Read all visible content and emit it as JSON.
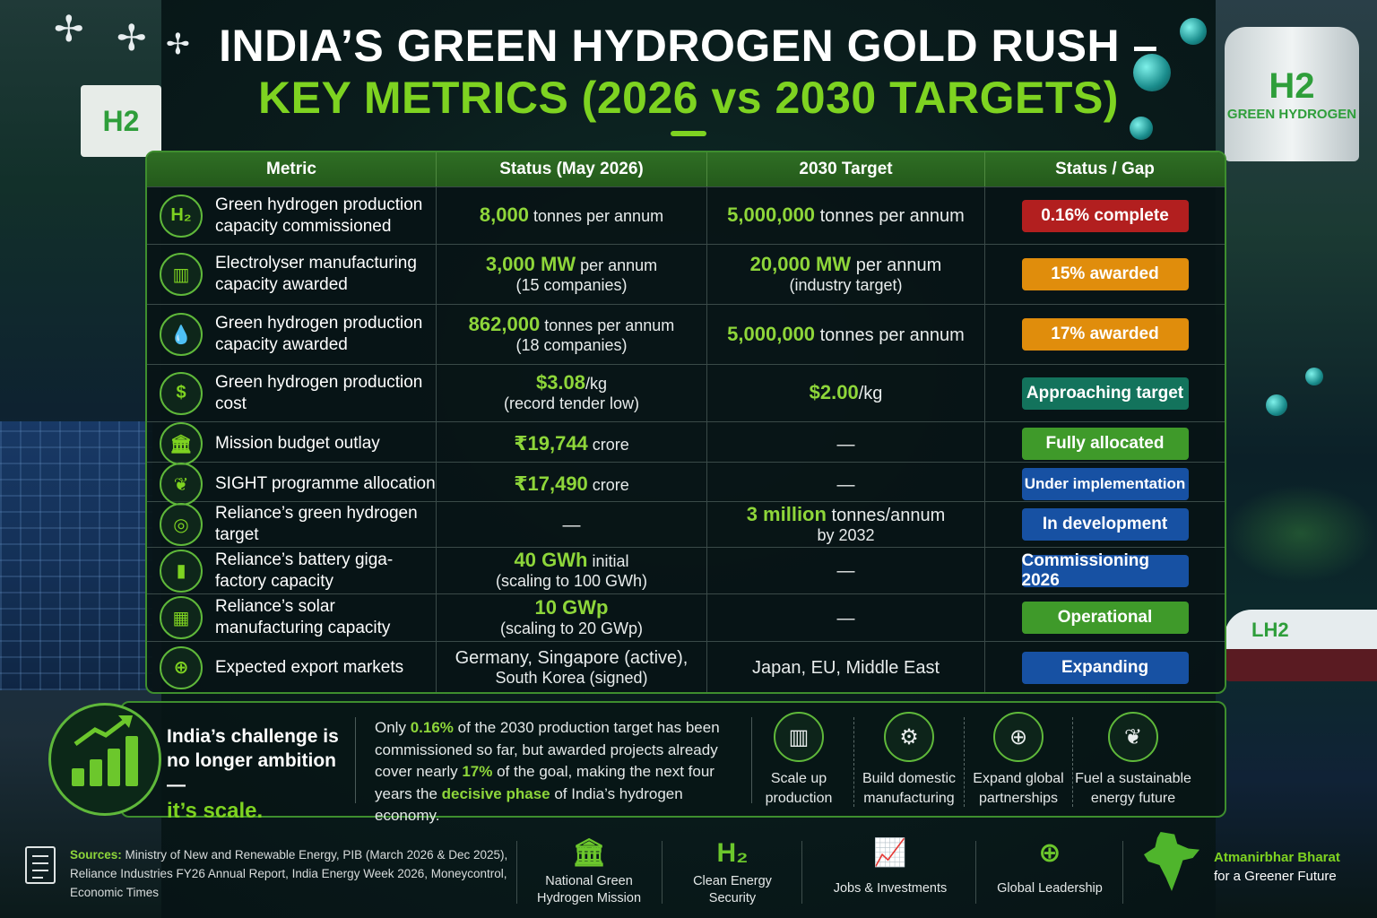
{
  "title": {
    "line1": "INDIA’S GREEN HYDROGEN GOLD RUSH –",
    "line2": "KEY METRICS (2026 vs 2030 TARGETS)"
  },
  "decor": {
    "tank_h2": "H2",
    "tank_label": "GREEN HYDROGEN",
    "facility_h2": "H2",
    "ship_label": "LH2"
  },
  "table": {
    "headers": [
      "Metric",
      "Status (May 2026)",
      "2030 Target",
      "Status / Gap"
    ],
    "rows": [
      {
        "icon": "h2-icon",
        "icon_text": "H₂",
        "metric": "Green hydrogen production capacity commissioned",
        "status_hl": "8,000",
        "status_rest": " tonnes per annum",
        "status_sub": "",
        "target_hl": "5,000,000",
        "target_rest": " tonnes per annum",
        "target_sub": "",
        "gap": "0.16% complete",
        "gap_color": "#b21f1f"
      },
      {
        "icon": "electrolyser-icon",
        "icon_text": "▥",
        "metric": "Electrolyser manufacturing capacity awarded",
        "status_hl": "3,000 MW",
        "status_rest": " per annum",
        "status_sub": "(15 companies)",
        "target_hl": "20,000 MW",
        "target_rest": " per annum",
        "target_sub": "(industry target)",
        "gap": "15% awarded",
        "gap_color": "#e08d0c"
      },
      {
        "icon": "water-drop-icon",
        "icon_text": "💧",
        "metric": "Green hydrogen production capacity awarded",
        "status_hl": "862,000",
        "status_rest": " tonnes per annum",
        "status_sub": "(18 companies)",
        "target_hl": "5,000,000",
        "target_rest": " tonnes per annum",
        "target_sub": "",
        "gap": "17% awarded",
        "gap_color": "#e08d0c"
      },
      {
        "icon": "dollar-icon",
        "icon_text": "$",
        "metric": "Green hydrogen production cost",
        "status_hl": "$3.08",
        "status_rest": "/kg",
        "status_sub": "(record tender low)",
        "target_hl": "$2.00",
        "target_rest": "/kg",
        "target_sub": "",
        "gap": "Approaching target",
        "gap_color": "#13735c"
      },
      {
        "icon": "government-building-icon",
        "icon_text": "🏛",
        "metric": "Mission budget outlay",
        "status_hl": "₹19,744",
        "status_rest": " crore",
        "status_sub": "",
        "target_hl": "",
        "target_rest": "—",
        "target_sub": "",
        "gap": "Fully allocated",
        "gap_color": "#3f9a2a"
      },
      {
        "icon": "leaf-icon",
        "icon_text": "❦",
        "metric": "SIGHT programme allocation",
        "status_hl": "₹17,490",
        "status_rest": " crore",
        "status_sub": "",
        "target_hl": "",
        "target_rest": "—",
        "target_sub": "",
        "gap": "Under implementation",
        "gap_color": "#1751a3"
      },
      {
        "icon": "target-icon",
        "icon_text": "◎",
        "metric": "Reliance’s green hydrogen target",
        "status_hl": "",
        "status_rest": "—",
        "status_sub": "",
        "target_hl": "3 million",
        "target_rest": " tonnes/annum",
        "target_sub": "by 2032",
        "gap": "In development",
        "gap_color": "#1751a3"
      },
      {
        "icon": "battery-icon",
        "icon_text": "▮",
        "metric": "Reliance’s battery giga-factory capacity",
        "status_hl": "40 GWh",
        "status_rest": " initial",
        "status_sub": "(scaling to 100 GWh)",
        "target_hl": "",
        "target_rest": "—",
        "target_sub": "",
        "gap": "Commissioning 2026",
        "gap_color": "#1751a3"
      },
      {
        "icon": "solar-panel-icon",
        "icon_text": "▦",
        "metric": "Reliance’s solar manufacturing capacity",
        "status_hl": "10 GWp",
        "status_rest": "",
        "status_sub": "(scaling to 20 GWp)",
        "target_hl": "",
        "target_rest": "—",
        "target_sub": "",
        "gap": "Operational",
        "gap_color": "#3f9a2a"
      },
      {
        "icon": "globe-icon",
        "icon_text": "⊕",
        "metric": "Expected export markets",
        "status_hl": "",
        "status_rest": "Germany, Singapore (active),",
        "status_sub": "South Korea (signed)",
        "target_hl": "",
        "target_rest": "Japan, EU, Middle East",
        "target_sub": "",
        "gap": "Expanding",
        "gap_color": "#1751a3"
      }
    ]
  },
  "insight": {
    "challenge_line1": "India’s challenge is no longer ambition —",
    "challenge_line2": "it’s scale.",
    "text_1": "Only ",
    "text_hl1": "0.16%",
    "text_2": " of the 2030 production target has been commissioned so far, but awarded projects already cover nearly ",
    "text_hl2": "17%",
    "text_3": " of the goal, making the next four years the ",
    "text_hl3": "decisive phase",
    "text_4": " of India’s hydrogen economy.",
    "actions": [
      {
        "icon": "factory-icon",
        "glyph": "▥",
        "label": "Scale up production"
      },
      {
        "icon": "gear-icon",
        "glyph": "⚙",
        "label": "Build domestic manufacturing"
      },
      {
        "icon": "globe-icon",
        "glyph": "⊕",
        "label": "Expand global partnerships"
      },
      {
        "icon": "leaf-icon",
        "glyph": "❦",
        "label": "Fuel a sustainable energy future"
      }
    ]
  },
  "footer": {
    "sources_label": "Sources:",
    "sources_text": " Ministry of New and Renewable Energy, PIB (March 2026 & Dec 2025), Reliance Industries FY26 Annual Report, India Energy Week 2026, Moneycontrol, Economic Times",
    "items": [
      {
        "icon": "government-building-icon",
        "glyph": "🏛",
        "label": "National Green Hydrogen Mission"
      },
      {
        "icon": "h2-icon",
        "glyph": "H₂",
        "label": "Clean Energy Security"
      },
      {
        "icon": "growth-chart-icon",
        "glyph": "📈",
        "label": "Jobs & Investments"
      },
      {
        "icon": "globe-icon",
        "glyph": "⊕",
        "label": "Global Leadership"
      }
    ],
    "atman_title": "Atmanirbhar Bharat",
    "atman_sub": "for a Greener Future"
  }
}
